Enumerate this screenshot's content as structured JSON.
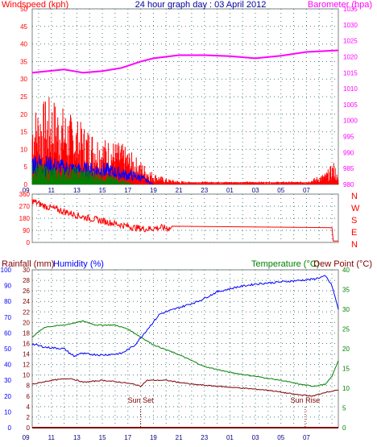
{
  "chart_data": [
    {
      "type": "line",
      "title": "24 hour graph day : 03 April 2012",
      "left_axis_label": "Windspeed (kph)",
      "right_axis_label": "Barometer (hpa)",
      "left_ticks": [
        0,
        5,
        10,
        15,
        20,
        25,
        30,
        35,
        40,
        45,
        50
      ],
      "right_ticks": [
        980,
        985,
        990,
        995,
        1000,
        1005,
        1010,
        1015,
        1020,
        1025,
        1030,
        1035
      ],
      "left_ylim": [
        0,
        50
      ],
      "right_ylim": [
        980,
        1035
      ],
      "x_ticks": [
        "11",
        "13",
        "15",
        "17",
        "19",
        "21",
        "23",
        "01",
        "03",
        "05",
        "07",
        "09"
      ],
      "x_start_hour": 9.5,
      "x_end_hour": 33.5,
      "grid": true,
      "series": [
        {
          "color": "#ff00ff",
          "axis": "right",
          "x": [
            9.5,
            12,
            13.5,
            15,
            16.5,
            18,
            19,
            21,
            23,
            25,
            27,
            29,
            31,
            33.5
          ],
          "y": [
            1015,
            1016,
            1015,
            1015.5,
            1016.5,
            1018.5,
            1019.5,
            1020.5,
            1020.5,
            1020.2,
            1019.5,
            1020.3,
            1021.5,
            1022
          ]
        },
        {
          "color": "#ff0000",
          "axis": "left",
          "style": "noisy-bars",
          "x": [
            9.5,
            11,
            13,
            15,
            16.5,
            18,
            19,
            20,
            21.5,
            31,
            32.5,
            33.2,
            33.5
          ],
          "y": [
            13,
            15,
            11,
            8,
            7,
            4,
            2,
            1,
            0.5,
            0.5,
            2,
            4,
            0.5
          ]
        },
        {
          "color": "#0000ff",
          "axis": "left",
          "style": "noisy-line",
          "x": [
            9.5,
            11,
            13,
            15,
            16.5,
            18,
            19
          ],
          "y": [
            6,
            5,
            4,
            4,
            3,
            2,
            0
          ]
        },
        {
          "color": "#008000",
          "axis": "left",
          "style": "noisy-bars",
          "x": [
            9.5,
            11,
            13,
            15,
            16.5,
            17.5
          ],
          "y": [
            4,
            3,
            3,
            2,
            1,
            0
          ]
        }
      ]
    },
    {
      "type": "line",
      "left_ticks": [
        0,
        90,
        180,
        270,
        360
      ],
      "right_ticks": [
        "N",
        "W",
        "S",
        "E",
        "N"
      ],
      "ylim": [
        0,
        360
      ],
      "x_start_hour": 9.5,
      "x_end_hour": 33.5,
      "series": [
        {
          "color": "#ff0000",
          "style": "noisy-line",
          "x": [
            9.5,
            10.5,
            12,
            13.5,
            15,
            16.5,
            17.5,
            18.5,
            19.5,
            20.5,
            33,
            33.1,
            33.5
          ],
          "y": [
            310,
            270,
            230,
            190,
            160,
            130,
            110,
            100,
            110,
            105,
            110,
            10,
            10
          ]
        }
      ]
    },
    {
      "type": "line",
      "label_rainfall": "Rainfall (mm)",
      "label_humidity": "Humidity (%)",
      "label_temperature": "Temperature (°C)",
      "label_dewpoint": "Dew Point (°C)",
      "humidity_ticks": [
        0,
        10,
        20,
        30,
        40,
        50,
        60,
        70,
        80,
        90,
        100
      ],
      "rain_ticks": [
        0,
        2,
        4,
        6,
        8,
        10,
        12,
        14,
        16,
        18,
        20,
        22,
        24,
        26,
        28,
        30
      ],
      "temp_ticks": [
        0,
        5,
        10,
        15,
        20,
        25,
        30,
        35,
        40
      ],
      "temp_ylim": [
        0,
        40
      ],
      "humidity_ylim": [
        0,
        100
      ],
      "x_ticks": [
        "11",
        "13",
        "15",
        "17",
        "19",
        "21",
        "23",
        "01",
        "03",
        "05",
        "07",
        "09"
      ],
      "x_start_hour": 9.5,
      "x_end_hour": 33.5,
      "annotations": [
        {
          "text": "Sun Set",
          "x": 18
        },
        {
          "text": "Sun Rise",
          "x": 30.9
        }
      ],
      "series": [
        {
          "color": "#008000",
          "axis": "temp",
          "x": [
            9.5,
            10.5,
            12,
            13.5,
            14.5,
            16,
            17,
            18,
            19,
            21,
            23,
            25,
            27,
            29,
            30.5,
            31.5,
            32.5,
            33,
            33.5
          ],
          "y": [
            23,
            25.5,
            26,
            27,
            26,
            26,
            25,
            23,
            21,
            18.5,
            15.5,
            14,
            13,
            12,
            11,
            10.5,
            11,
            13,
            17
          ]
        },
        {
          "color": "#0000ff",
          "axis": "humidity",
          "x": [
            9.5,
            10.5,
            12,
            12.8,
            13.2,
            15,
            16.5,
            17.5,
            18.5,
            19.5,
            21,
            22.5,
            24,
            25.5,
            27,
            28.5,
            30,
            31.5,
            32.5,
            33,
            33.5
          ],
          "y": [
            53,
            51,
            50,
            45,
            47,
            46,
            47,
            52,
            62,
            72,
            76,
            80,
            86,
            89,
            91,
            92,
            93,
            94,
            96,
            90,
            75
          ]
        },
        {
          "color": "#800000",
          "axis": "temp",
          "x": [
            9.5,
            11,
            12.5,
            13.5,
            15,
            16.5,
            17.5,
            18,
            18.5,
            20,
            22,
            24,
            26,
            28,
            30,
            31.5,
            32.5,
            33.5
          ],
          "y": [
            11,
            12,
            12.5,
            11.5,
            12,
            11.5,
            11,
            10.5,
            12,
            12,
            11,
            10.5,
            10,
            9.5,
            8.5,
            8,
            9,
            9.5
          ]
        },
        {
          "color": "#800000",
          "axis": "rain",
          "x": [
            9.5,
            33.5
          ],
          "y": [
            0,
            0
          ]
        }
      ]
    }
  ]
}
